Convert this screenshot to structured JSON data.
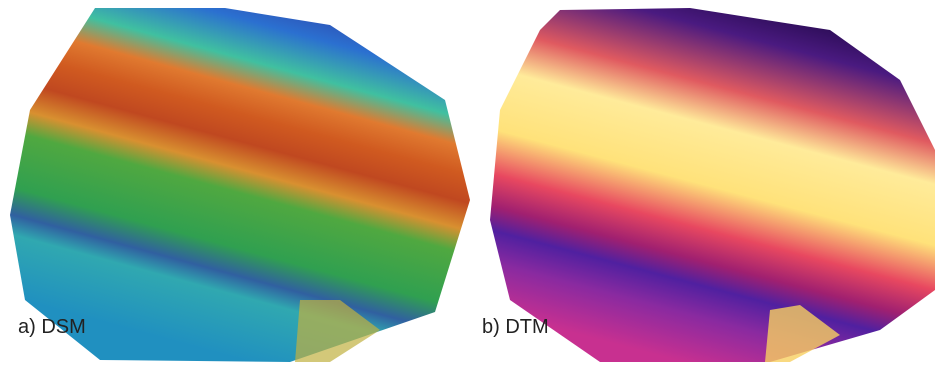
{
  "panels": [
    {
      "label": "a) DSM"
    },
    {
      "label": "b) DTM"
    }
  ]
}
